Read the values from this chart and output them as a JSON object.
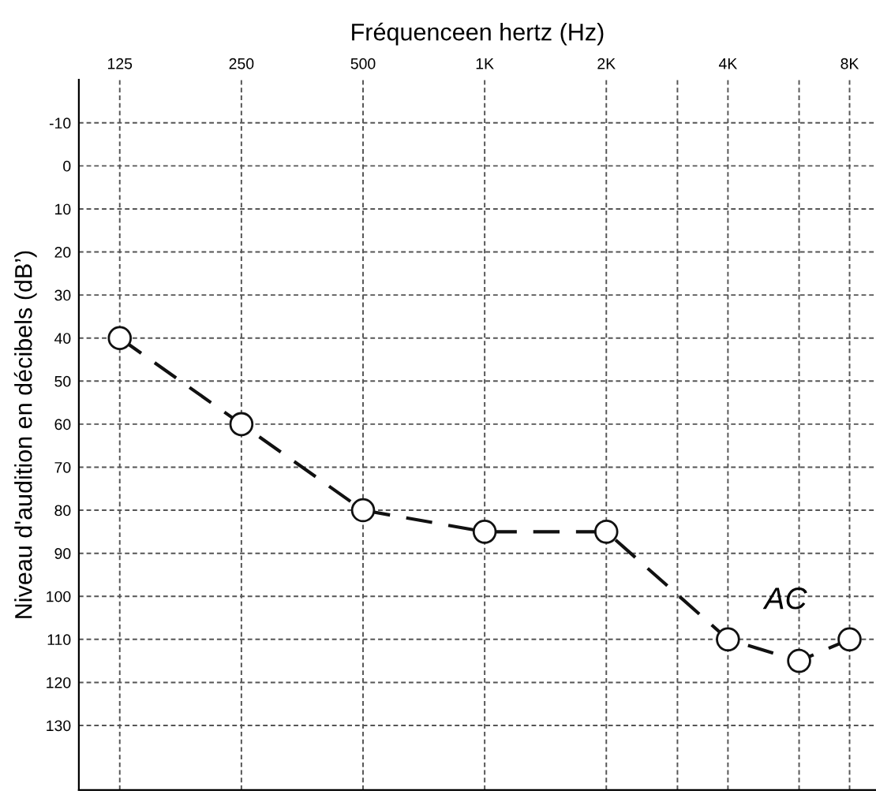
{
  "chart_data": {
    "type": "line",
    "title": "Fréquenceen hertz (Hz)",
    "ylabel": "Niveau d'audition en décibels (dB’)",
    "x": [
      125,
      250,
      500,
      1000,
      2000,
      4000,
      6000,
      8000
    ],
    "series": [
      {
        "color": "#111111",
        "values": [
          40,
          60,
          80,
          85,
          85,
          110,
          115,
          110
        ]
      }
    ],
    "log": "x",
    "xlim": [
      99,
      9300
    ],
    "ylim": [
      145,
      -20
    ],
    "xticks": [
      125,
      250,
      500,
      {
        "value": 1000,
        "label": "1K"
      },
      {
        "value": 2000,
        "label": "2K"
      },
      {
        "value": 3000,
        "label": null
      },
      {
        "value": 4000,
        "label": "4K"
      },
      {
        "value": 6000,
        "label": null
      },
      {
        "value": 8000,
        "label": "8K"
      }
    ],
    "yticks": [
      -10,
      0,
      10,
      20,
      30,
      40,
      50,
      60,
      70,
      80,
      90,
      100,
      110,
      120,
      130
    ],
    "annotations": [
      "AC"
    ],
    "grid": true,
    "marker": "circle",
    "line_style": "dashed"
  }
}
